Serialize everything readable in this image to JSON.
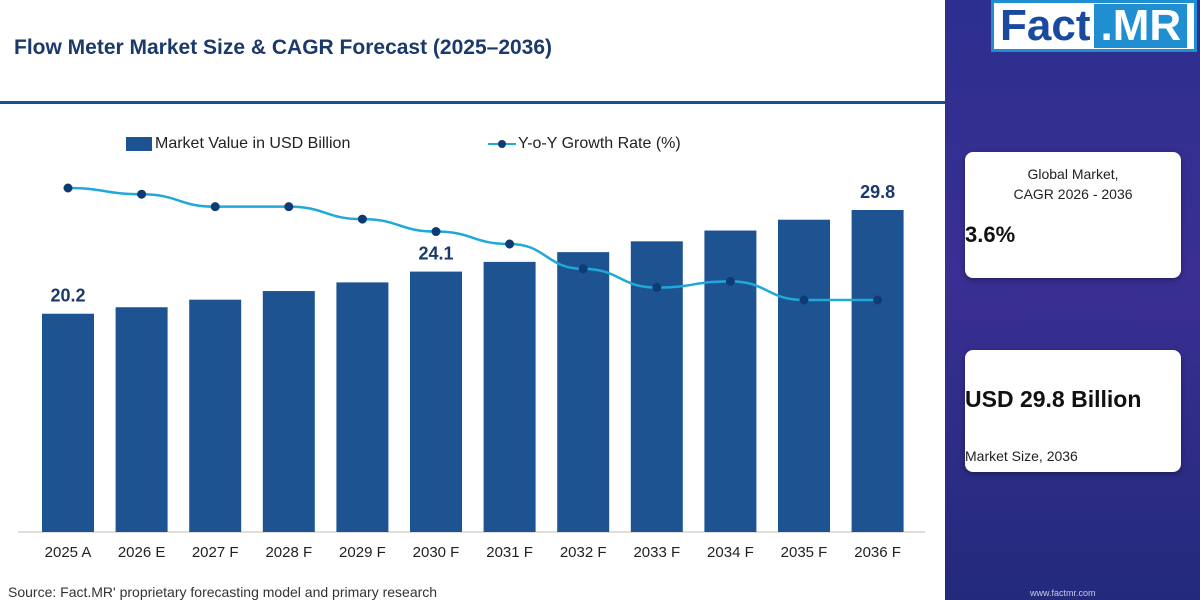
{
  "title": "Flow Meter Market Size & CAGR Forecast (2025–2036)",
  "source": "Source: Fact.MR' proprietary forecasting model and primary research",
  "brand": {
    "logo_fact": "Fact",
    "logo_mr": ".MR",
    "url": "www.factmr.com",
    "accent_color": "#1f8fd1",
    "sidebar_color": "#2c2f8f"
  },
  "cards": {
    "cagr_label_line1": "Global Market,",
    "cagr_label_line2": "CAGR 2026 - 2036",
    "cagr_value": "3.6%",
    "size_value": "USD 29.8 Billion",
    "size_label": "Market Size, 2036"
  },
  "chart_data": {
    "type": "bar",
    "categories": [
      "2025 A",
      "2026 E",
      "2027 F",
      "2028 F",
      "2029 F",
      "2030 F",
      "2031 F",
      "2032 F",
      "2033 F",
      "2034 F",
      "2035 F",
      "2036 F"
    ],
    "legend_position": "top",
    "grid": false,
    "series": [
      {
        "name": "Market Value in USD Billion",
        "type": "bar",
        "color": "#1e5391",
        "values": [
          20.2,
          20.8,
          21.5,
          22.3,
          23.1,
          24.1,
          25.0,
          25.9,
          26.9,
          27.9,
          28.9,
          29.8
        ],
        "data_labels": {
          "0": "20.2",
          "5": "24.1",
          "11": "29.8"
        }
      },
      {
        "name": "Y-o-Y Growth Rate (%)",
        "type": "line",
        "color": "#1fa8d8",
        "marker_color": "#0f3b74",
        "values": [
          4.3,
          4.2,
          4.0,
          4.0,
          3.8,
          3.6,
          3.4,
          3.0,
          2.7,
          2.8,
          2.5,
          2.5
        ]
      }
    ],
    "bar_ylim": [
      0,
      32
    ],
    "line_ylim": [
      0,
      6
    ]
  }
}
